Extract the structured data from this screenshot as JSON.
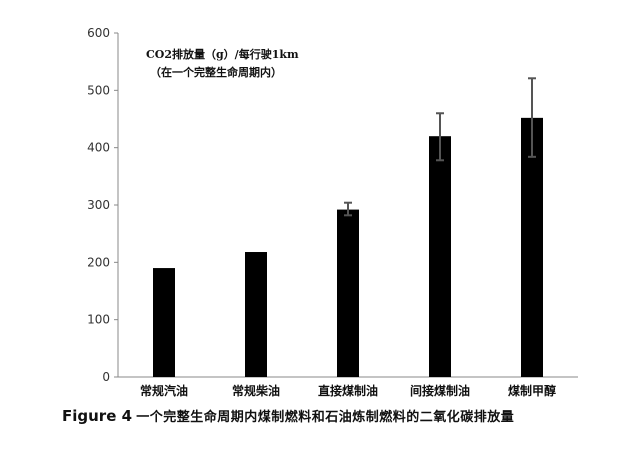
{
  "chart_data": {
    "type": "bar",
    "title": "CO2排放量（g）/每行驶1km",
    "subtitle": "（在一个完整生命周期内）",
    "categories": [
      "常规汽油",
      "常规柴油",
      "直接煤制油",
      "间接煤制油",
      "煤制甲醇"
    ],
    "values": [
      190,
      218,
      292,
      420,
      452
    ],
    "error_low": [
      null,
      null,
      282,
      378,
      384
    ],
    "error_high": [
      null,
      null,
      304,
      460,
      521
    ],
    "ylim": [
      0,
      600
    ],
    "yticks": [
      0,
      100,
      200,
      300,
      400,
      500,
      600
    ],
    "grid": false,
    "legend": "none",
    "bar_color": "#000000",
    "error_color": "#555555"
  },
  "caption": {
    "label": "Figure 4",
    "text": "一个完整生命周期内煤制燃料和石油炼制燃料的二氧化碳排放量"
  }
}
